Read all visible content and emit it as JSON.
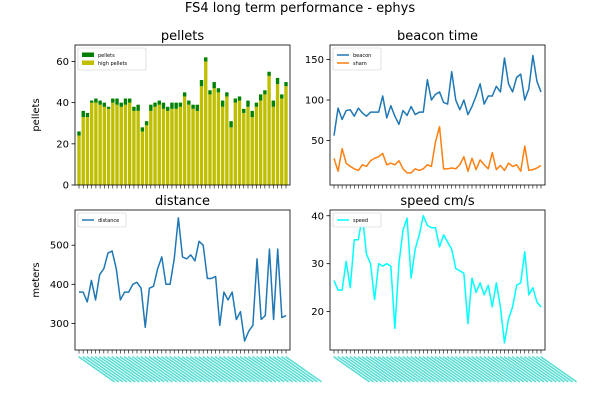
{
  "suptitle": "FS4 long term performance - ephys",
  "chart_data": [
    {
      "type": "bar",
      "title": "pellets",
      "ylabel": "pellets",
      "xlabel": "",
      "ylim": [
        0,
        68
      ],
      "yticks": [
        0,
        20,
        40,
        60
      ],
      "stacked": true,
      "legend_position": "upper-left",
      "series": [
        {
          "name": "pellets",
          "color": "#008000",
          "values": [
            2,
            3,
            2,
            1,
            2,
            2,
            2,
            1,
            2,
            3,
            2,
            3,
            2,
            2,
            3,
            2,
            2,
            3,
            2,
            2,
            3,
            2,
            3,
            3,
            2,
            2,
            2,
            2,
            3,
            3,
            2,
            2,
            3,
            2,
            3,
            2,
            3,
            2,
            2,
            2,
            3,
            3,
            2,
            3,
            2,
            2,
            3,
            3,
            2,
            2
          ]
        },
        {
          "name": "high pellets",
          "color": "#bfbf00",
          "values": [
            24,
            33,
            33,
            40,
            40,
            39,
            38,
            37,
            40,
            39,
            38,
            39,
            40,
            36,
            36,
            26,
            29,
            36,
            38,
            39,
            37,
            36,
            37,
            37,
            38,
            43,
            39,
            37,
            36,
            48,
            60,
            44,
            47,
            45,
            38,
            43,
            28,
            40,
            41,
            35,
            38,
            33,
            38,
            41,
            44,
            53,
            38,
            49,
            42,
            48
          ]
        }
      ]
    },
    {
      "type": "line",
      "title": "beacon time",
      "ylabel": "",
      "xlabel": "",
      "ylim": [
        -5,
        168
      ],
      "yticks": [
        50,
        100,
        150
      ],
      "legend_position": "upper-left",
      "series": [
        {
          "name": "beacon",
          "color": "#1f77b4",
          "values": [
            56,
            90,
            76,
            87,
            88,
            80,
            90,
            84,
            80,
            85,
            85,
            85,
            105,
            78,
            93,
            80,
            70,
            87,
            81,
            92,
            82,
            85,
            85,
            125,
            100,
            107,
            110,
            97,
            95,
            135,
            100,
            88,
            100,
            82,
            92,
            105,
            120,
            95,
            105,
            105,
            117,
            110,
            152,
            120,
            110,
            128,
            132,
            100,
            114,
            155,
            123,
            110
          ]
        },
        {
          "name": "sham",
          "color": "#ff7f0e",
          "values": [
            28,
            12,
            40,
            22,
            18,
            15,
            13,
            20,
            18,
            25,
            28,
            30,
            34,
            20,
            22,
            20,
            25,
            15,
            10,
            10,
            15,
            13,
            15,
            20,
            18,
            48,
            67,
            15,
            15,
            16,
            15,
            20,
            30,
            12,
            28,
            14,
            26,
            20,
            15,
            35,
            14,
            19,
            13,
            22,
            18,
            20,
            12,
            43,
            13,
            14,
            16,
            19
          ]
        }
      ]
    },
    {
      "type": "line",
      "title": "distance",
      "ylabel": "meters",
      "xlabel": "",
      "ylim": [
        232,
        590
      ],
      "yticks": [
        300,
        400,
        500
      ],
      "legend_position": "upper-left",
      "series": [
        {
          "name": "distance",
          "color": "#1f77b4",
          "values": [
            380,
            380,
            355,
            410,
            360,
            425,
            440,
            480,
            485,
            440,
            360,
            380,
            380,
            400,
            405,
            390,
            290,
            390,
            395,
            440,
            470,
            400,
            400,
            465,
            570,
            470,
            465,
            475,
            460,
            510,
            500,
            415,
            415,
            420,
            295,
            380,
            360,
            380,
            310,
            330,
            255,
            280,
            295,
            465,
            310,
            320,
            490,
            310,
            490,
            315,
            320
          ]
        }
      ]
    },
    {
      "type": "line",
      "title": "speed cm/s",
      "ylabel": "",
      "xlabel": "",
      "ylim": [
        12,
        41.2
      ],
      "yticks": [
        20,
        30,
        40
      ],
      "legend_position": "upper-left",
      "series": [
        {
          "name": "speed",
          "color": "#00ffff",
          "values": [
            26.5,
            24.5,
            24.5,
            30.5,
            25,
            35,
            35,
            40,
            32,
            30,
            22.5,
            30,
            29.5,
            30,
            29.5,
            16.5,
            30,
            37,
            39.5,
            27,
            33,
            36,
            40,
            38,
            37.5,
            37.5,
            33.5,
            36,
            34.5,
            33,
            29,
            28.5,
            28,
            17.5,
            27,
            24,
            26,
            23.5,
            25.5,
            21,
            26,
            21,
            13.5,
            18.5,
            21,
            25.5,
            26,
            32.5,
            23.5,
            25,
            22,
            21
          ]
        }
      ]
    }
  ]
}
